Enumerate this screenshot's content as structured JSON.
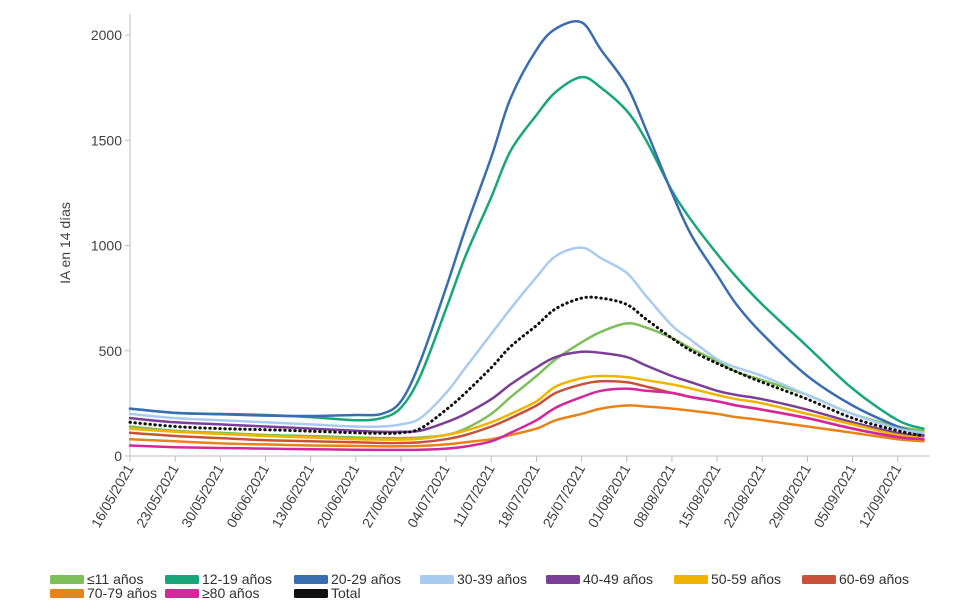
{
  "chart_data": {
    "type": "line",
    "ylabel": "IA en 14 días",
    "ylim": [
      0,
      2100
    ],
    "yticks": [
      0,
      500,
      1000,
      1500,
      2000
    ],
    "grid": false,
    "legend_position": "bottom",
    "date_start": "16/05/2021",
    "xticks": [
      "16/05/2021",
      "23/05/2021",
      "30/05/2021",
      "06/06/2021",
      "13/06/2021",
      "20/06/2021",
      "27/06/2021",
      "04/07/2021",
      "11/07/2021",
      "18/07/2021",
      "25/07/2021",
      "01/08/2021",
      "08/08/2021",
      "15/08/2021",
      "22/08/2021",
      "29/08/2021",
      "05/09/2021",
      "12/09/2021"
    ],
    "x": [
      "16/05/2021",
      "23/05/2021",
      "30/05/2021",
      "06/06/2021",
      "13/06/2021",
      "20/06/2021",
      "24/06/2021",
      "27/06/2021",
      "30/06/2021",
      "04/07/2021",
      "07/07/2021",
      "11/07/2021",
      "14/07/2021",
      "18/07/2021",
      "21/07/2021",
      "25/07/2021",
      "28/07/2021",
      "01/08/2021",
      "04/08/2021",
      "08/08/2021",
      "11/08/2021",
      "15/08/2021",
      "18/08/2021",
      "22/08/2021",
      "29/08/2021",
      "05/09/2021",
      "12/09/2021",
      "16/09/2021"
    ],
    "series": [
      {
        "name": "≤11 años",
        "color": "#7cbf5a",
        "style": "solid",
        "values": [
          140,
          120,
          110,
          100,
          95,
          88,
          85,
          85,
          88,
          100,
          130,
          200,
          280,
          380,
          460,
          540,
          590,
          630,
          610,
          560,
          510,
          450,
          400,
          360,
          290,
          200,
          140,
          120
        ]
      },
      {
        "name": "12-19 años",
        "color": "#17a67a",
        "style": "solid",
        "values": [
          225,
          205,
          200,
          195,
          185,
          170,
          180,
          230,
          380,
          700,
          950,
          1230,
          1450,
          1620,
          1730,
          1800,
          1750,
          1640,
          1500,
          1260,
          1120,
          960,
          850,
          720,
          520,
          320,
          170,
          130
        ]
      },
      {
        "name": "20-29 años",
        "color": "#3a6db0",
        "style": "solid",
        "values": [
          225,
          205,
          198,
          192,
          190,
          195,
          200,
          260,
          450,
          800,
          1080,
          1420,
          1700,
          1930,
          2030,
          2060,
          1930,
          1760,
          1550,
          1250,
          1050,
          860,
          720,
          580,
          380,
          240,
          140,
          100
        ]
      },
      {
        "name": "30-39 años",
        "color": "#a9cbf0",
        "style": "solid",
        "values": [
          200,
          180,
          170,
          160,
          150,
          140,
          140,
          150,
          180,
          300,
          420,
          580,
          700,
          850,
          950,
          990,
          940,
          870,
          760,
          620,
          550,
          460,
          420,
          380,
          290,
          200,
          130,
          110
        ]
      },
      {
        "name": "40-49 años",
        "color": "#7b3f96",
        "style": "solid",
        "values": [
          180,
          160,
          150,
          140,
          130,
          120,
          115,
          115,
          120,
          160,
          200,
          270,
          340,
          420,
          470,
          495,
          490,
          470,
          430,
          380,
          350,
          310,
          290,
          270,
          220,
          160,
          110,
          95
        ]
      },
      {
        "name": "50-59 años",
        "color": "#f0b400",
        "style": "solid",
        "values": [
          130,
          115,
          105,
          95,
          88,
          80,
          78,
          78,
          82,
          100,
          120,
          160,
          200,
          260,
          330,
          370,
          380,
          375,
          360,
          340,
          320,
          290,
          270,
          250,
          200,
          150,
          100,
          85
        ]
      },
      {
        "name": "60-69 años",
        "color": "#c9503a",
        "style": "solid",
        "values": [
          110,
          95,
          85,
          75,
          70,
          65,
          62,
          62,
          65,
          80,
          100,
          140,
          180,
          240,
          300,
          340,
          355,
          350,
          330,
          300,
          280,
          260,
          240,
          220,
          180,
          130,
          90,
          75
        ]
      },
      {
        "name": "70-79 años",
        "color": "#e88319",
        "style": "solid",
        "values": [
          80,
          70,
          60,
          55,
          50,
          48,
          46,
          46,
          48,
          55,
          65,
          80,
          100,
          130,
          170,
          200,
          225,
          240,
          235,
          225,
          215,
          200,
          185,
          170,
          140,
          110,
          80,
          70
        ]
      },
      {
        "name": "≥80 años",
        "color": "#d4279c",
        "style": "solid",
        "values": [
          50,
          42,
          38,
          35,
          32,
          30,
          29,
          29,
          30,
          35,
          45,
          70,
          110,
          170,
          230,
          280,
          310,
          320,
          310,
          300,
          280,
          260,
          240,
          220,
          180,
          130,
          90,
          80
        ]
      },
      {
        "name": "Total",
        "color": "#111111",
        "style": "dotted",
        "values": [
          160,
          140,
          130,
          125,
          118,
          110,
          108,
          110,
          130,
          220,
          300,
          420,
          520,
          620,
          700,
          750,
          750,
          720,
          650,
          560,
          500,
          440,
          400,
          350,
          270,
          180,
          120,
          95
        ]
      }
    ]
  }
}
